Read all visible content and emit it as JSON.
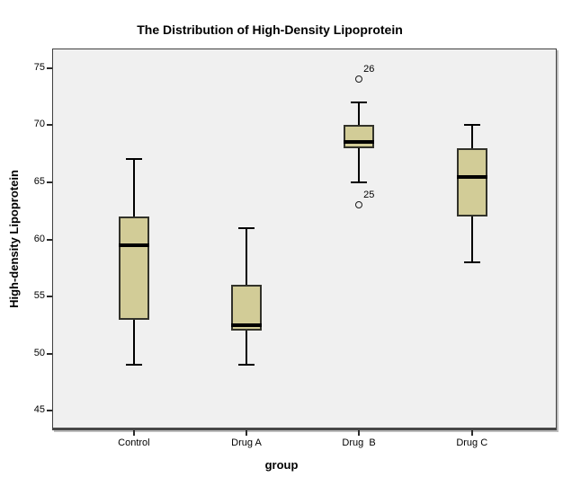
{
  "chart_data": {
    "type": "boxplot",
    "title": "The Distribution of High-Density Lipoprotein",
    "xlabel": "group",
    "ylabel": "High-density Lipoprotein",
    "ylim": [
      43.3,
      76.7
    ],
    "yticks": [
      45,
      50,
      55,
      60,
      65,
      70,
      75
    ],
    "categories": [
      "Control",
      "Drug A",
      "Drug  B",
      "Drug C"
    ],
    "boxes": [
      {
        "group": "Control",
        "whisker_low": 49,
        "q1": 53,
        "median": 59.5,
        "q3": 62,
        "whisker_high": 67,
        "outliers": []
      },
      {
        "group": "Drug A",
        "whisker_low": 49,
        "q1": 52,
        "median": 52.5,
        "q3": 56,
        "whisker_high": 61,
        "outliers": []
      },
      {
        "group": "Drug  B",
        "whisker_low": 65,
        "q1": 68,
        "median": 68.5,
        "q3": 70,
        "whisker_high": 72,
        "outliers": [
          {
            "value": 74,
            "label": "26"
          },
          {
            "value": 63,
            "label": "25"
          }
        ]
      },
      {
        "group": "Drug C",
        "whisker_low": 58,
        "q1": 62,
        "median": 65.5,
        "q3": 68,
        "whisker_high": 70,
        "outliers": []
      }
    ],
    "colors": {
      "box_fill": "#d2cc97",
      "box_border": "#32322a",
      "median": "#000000",
      "whisker": "#000000",
      "plot_bg": "#f0f0f0",
      "frame": "#3f3f3f",
      "text": "#000000"
    },
    "grid": false,
    "legend": "none"
  }
}
